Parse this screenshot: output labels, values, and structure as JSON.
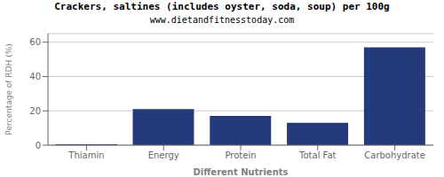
{
  "chart_data": {
    "type": "bar",
    "title": "Crackers, saltines (includes oyster, soda, soup) per 100g",
    "subtitle": "www.dietandfitnesstoday.com",
    "xlabel": "Different Nutrients",
    "ylabel": "Percentage of RDH (%)",
    "categories": [
      "Thiamin",
      "Energy",
      "Protein",
      "Total Fat",
      "Carbohydrate"
    ],
    "values": [
      0.5,
      21,
      17,
      13,
      57
    ],
    "color": "#253a7a",
    "ylim": [
      0,
      65
    ],
    "yticks": [
      0,
      20,
      40,
      60
    ],
    "grid": true
  }
}
